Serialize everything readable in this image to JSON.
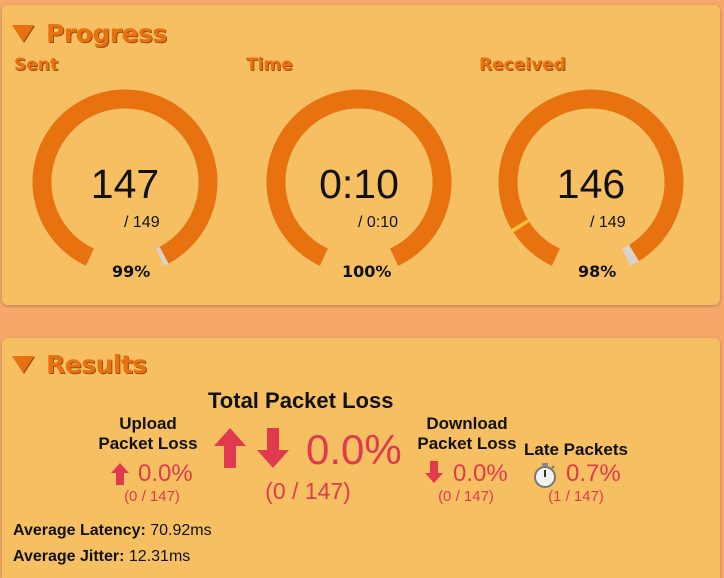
{
  "progress": {
    "title": "Progress",
    "gauges": [
      {
        "label": "Sent",
        "value": "147",
        "total": "/ 149",
        "percent_text": "99%",
        "fraction": 0.99
      },
      {
        "label": "Time",
        "value": "0:10",
        "total": "/ 0:10",
        "percent_text": "100%",
        "fraction": 1.0
      },
      {
        "label": "Received",
        "value": "146",
        "total": "/ 149",
        "percent_text": "98%",
        "fraction": 0.98,
        "late_fraction": 0.007
      }
    ]
  },
  "results": {
    "title": "Results",
    "total_loss": {
      "label": "Total Packet Loss",
      "value": "0.0%",
      "detail": "(0 / 147)"
    },
    "upload": {
      "label_line1": "Upload",
      "label_line2": "Packet Loss",
      "value": "0.0%",
      "detail": "(0 / 147)"
    },
    "download": {
      "label_line1": "Download",
      "label_line2": "Packet Loss",
      "value": "0.0%",
      "detail": "(0 / 147)"
    },
    "late": {
      "label": "Late Packets",
      "value": "0.7%",
      "detail": "(1 / 147)"
    },
    "latency": {
      "label": "Average Latency:",
      "value": "70.92ms"
    },
    "jitter": {
      "label": "Average Jitter:",
      "value": "12.31ms"
    }
  },
  "colors": {
    "accent": "#e8720f",
    "loss_red": "#e03a4e",
    "panel_bg": "#f6c062",
    "page_bg": "#f5a86a"
  },
  "icons": {
    "collapse": "triangle-down-icon",
    "up_arrow": "arrow-up-icon",
    "down_arrow": "arrow-down-icon",
    "stopwatch": "stopwatch-icon"
  }
}
